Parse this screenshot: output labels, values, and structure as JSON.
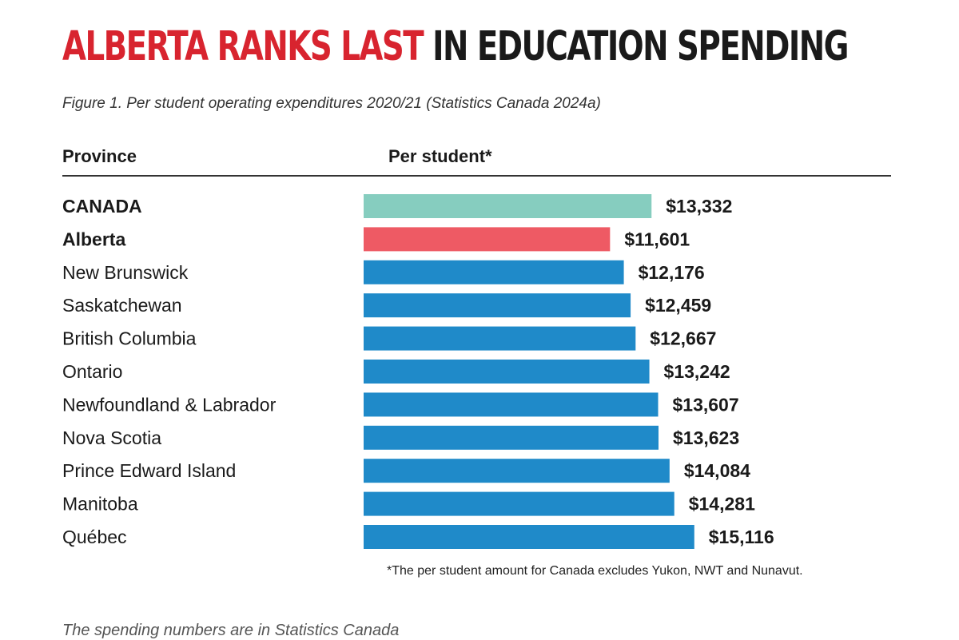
{
  "header": {
    "title_highlight": "ALBERTA RANKS LAST",
    "title_rest": " IN EDUCATION SPENDING",
    "subtitle": "Figure 1. Per student operating expenditures 2020/21 (Statistics Canada 2024a)"
  },
  "columns": {
    "province": "Province",
    "per_student": "Per student*"
  },
  "footnote": "*The per student amount for Canada excludes Yukon, NWT and Nunavut.",
  "body_text": "The spending numbers are in Statistics Canada",
  "colors": {
    "canada": "#86cdbf",
    "alberta": "#ee5a64",
    "province": "#1f8ac9",
    "title_red": "#d8242f"
  },
  "chart_data": {
    "type": "bar",
    "orientation": "horizontal",
    "categories": [
      "CANADA",
      "Alberta",
      "New Brunswick",
      "Saskatchewan",
      "British Columbia",
      "Ontario",
      "Newfoundland & Labrador",
      "Nova Scotia",
      "Prince Edward Island",
      "Manitoba",
      "Québec"
    ],
    "values": [
      13332,
      11601,
      12176,
      12459,
      12667,
      13242,
      13607,
      13623,
      14084,
      14281,
      15116
    ],
    "value_labels": [
      "$13,332",
      "$11,601",
      "$12,176",
      "$12,459",
      "$12,667",
      "$13,242",
      "$13,607",
      "$13,623",
      "$14,084",
      "$14,281",
      "$15,116"
    ],
    "bold_categories": [
      "CANADA",
      "Alberta"
    ],
    "title": "ALBERTA RANKS LAST IN EDUCATION SPENDING",
    "xlabel": "",
    "ylabel": "",
    "grid": false,
    "legend": "none"
  }
}
